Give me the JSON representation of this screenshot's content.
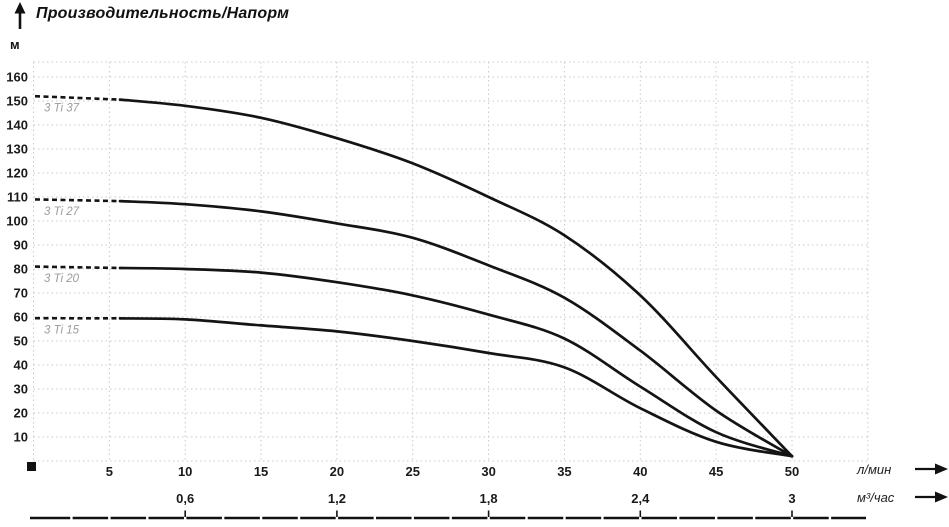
{
  "header": {
    "title": "Производительность/Напорм"
  },
  "y_axis": {
    "unit_label": "м"
  },
  "chart_data": {
    "type": "line",
    "title": "Производительность/Напорм",
    "ylabel": "м",
    "grid": true,
    "legend_position": "inline-labels",
    "xlim": [
      0,
      55
    ],
    "ylim": [
      0,
      166
    ],
    "y_ticks": [
      10,
      20,
      30,
      40,
      50,
      60,
      70,
      80,
      90,
      100,
      110,
      120,
      130,
      140,
      150,
      160
    ],
    "x_axis_primary": {
      "label": "л/мин",
      "ticks": [
        5,
        10,
        15,
        20,
        25,
        30,
        35,
        40,
        45,
        50
      ]
    },
    "x_axis_secondary": {
      "label": "м³/час",
      "ticks": [
        {
          "x": 10,
          "label": "0,6"
        },
        {
          "x": 20,
          "label": "1,2"
        },
        {
          "x": 30,
          "label": "1,8"
        },
        {
          "x": 40,
          "label": "2,4"
        },
        {
          "x": 50,
          "label": "3"
        }
      ]
    },
    "dashed_segment_end_x": 5.7,
    "convergence_point": [
      50,
      2
    ],
    "series": [
      {
        "name": "3 Ti 37",
        "points": [
          [
            0,
            152
          ],
          [
            5,
            151
          ],
          [
            10,
            148
          ],
          [
            15,
            143
          ],
          [
            20,
            134.5
          ],
          [
            25,
            124
          ],
          [
            30,
            110
          ],
          [
            35,
            94
          ],
          [
            40,
            69
          ],
          [
            45,
            35
          ],
          [
            50,
            2
          ]
        ]
      },
      {
        "name": "3 Ti 27",
        "points": [
          [
            0,
            109
          ],
          [
            5,
            108.5
          ],
          [
            10,
            107
          ],
          [
            15,
            104
          ],
          [
            20,
            99
          ],
          [
            25,
            93
          ],
          [
            30,
            81.5
          ],
          [
            35,
            68
          ],
          [
            40,
            46
          ],
          [
            45,
            21
          ],
          [
            50,
            2
          ]
        ]
      },
      {
        "name": "3 Ti 20",
        "points": [
          [
            0,
            81
          ],
          [
            5,
            80.5
          ],
          [
            10,
            80
          ],
          [
            15,
            78.5
          ],
          [
            20,
            74.5
          ],
          [
            25,
            69
          ],
          [
            30,
            61
          ],
          [
            35,
            51
          ],
          [
            40,
            31
          ],
          [
            45,
            12
          ],
          [
            50,
            2
          ]
        ]
      },
      {
        "name": "3 Ti 15",
        "points": [
          [
            0,
            59.5
          ],
          [
            5,
            59.5
          ],
          [
            10,
            59
          ],
          [
            15,
            56.5
          ],
          [
            20,
            54
          ],
          [
            25,
            50
          ],
          [
            30,
            45
          ],
          [
            35,
            39
          ],
          [
            40,
            22
          ],
          [
            45,
            8
          ],
          [
            50,
            2
          ]
        ]
      }
    ],
    "colors": {
      "curve": "#141414",
      "grid": "#c9c9c9",
      "series_label": "#9b9b9b",
      "tick_text": "#1a1a1a",
      "axis_bar": "#111111"
    }
  }
}
